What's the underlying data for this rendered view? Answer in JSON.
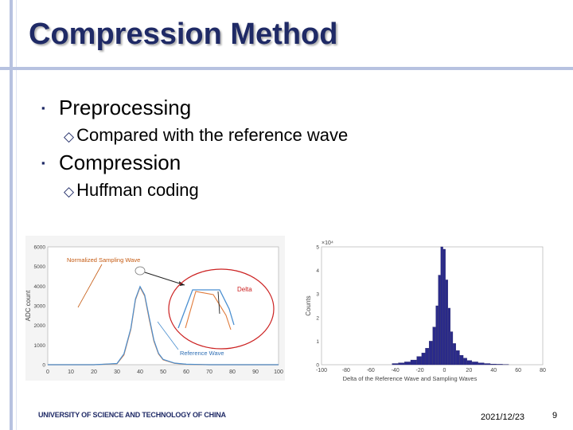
{
  "slide": {
    "title": "Compression Method",
    "bullets": [
      {
        "label": "Preprocessing",
        "sub": "Compared with the reference wave"
      },
      {
        "label": "Compression",
        "sub": "Huffman coding"
      }
    ],
    "sub_marker": "◇",
    "bullet_marker": "▪"
  },
  "footer": {
    "institution": "UNIVERSITY OF SCIENCE AND TECHNOLOGY OF CHINA",
    "date": "2021/12/23",
    "page": "9"
  },
  "chart_data": [
    {
      "type": "line",
      "ylabel": "ADC count",
      "ylim": [
        0,
        6000
      ],
      "xlim": [
        0,
        100
      ],
      "yticks": [
        "0",
        "1000",
        "2000",
        "3000",
        "4000",
        "5000",
        "6000"
      ],
      "xticks": [
        "0",
        "10",
        "20",
        "30",
        "40",
        "50",
        "60",
        "70",
        "80",
        "90",
        "100"
      ],
      "annotations": [
        "Normalized Sampling Wave",
        "Delta",
        "Reference Wave"
      ],
      "series": [
        {
          "name": "Normalized Sampling Wave",
          "color": "#e07a3a",
          "x": [
            0,
            20,
            30,
            33,
            36,
            38,
            40,
            42,
            44,
            46,
            48,
            50,
            55,
            60,
            70,
            80,
            100
          ],
          "y": [
            0,
            0,
            50,
            500,
            1800,
            3300,
            3950,
            3500,
            2300,
            1200,
            550,
            250,
            70,
            20,
            0,
            0,
            0
          ]
        },
        {
          "name": "Reference Wave",
          "color": "#4a8fd0",
          "x": [
            0,
            20,
            30,
            33,
            36,
            38,
            40,
            42,
            44,
            46,
            48,
            50,
            55,
            60,
            70,
            80,
            100
          ],
          "y": [
            0,
            0,
            60,
            550,
            1850,
            3350,
            3980,
            3550,
            2380,
            1250,
            580,
            270,
            80,
            25,
            0,
            0,
            0
          ]
        }
      ]
    },
    {
      "type": "bar",
      "xlabel": "Delta of the Reference Wave and Sampling Waves",
      "ylabel": "Counts",
      "exponent_label": "×10⁴",
      "xlim": [
        -100,
        80
      ],
      "ylim": [
        0,
        5
      ],
      "xticks": [
        "-100",
        "-80",
        "-60",
        "-40",
        "-20",
        "0",
        "20",
        "40",
        "60",
        "80"
      ],
      "yticks": [
        "0",
        "1",
        "2",
        "3",
        "4",
        "5"
      ],
      "color": "#2a2a8a",
      "x": [
        -40,
        -35,
        -30,
        -25,
        -20,
        -17,
        -14,
        -11,
        -8,
        -6,
        -4,
        -2,
        0,
        2,
        4,
        6,
        8,
        11,
        14,
        17,
        20,
        25,
        30,
        35,
        40,
        45,
        50
      ],
      "values": [
        0.05,
        0.08,
        0.12,
        0.2,
        0.35,
        0.5,
        0.7,
        1.0,
        1.6,
        2.5,
        3.8,
        5.0,
        4.9,
        3.6,
        2.4,
        1.4,
        0.9,
        0.6,
        0.4,
        0.28,
        0.18,
        0.12,
        0.08,
        0.05,
        0.03,
        0.02,
        0.01
      ]
    }
  ]
}
